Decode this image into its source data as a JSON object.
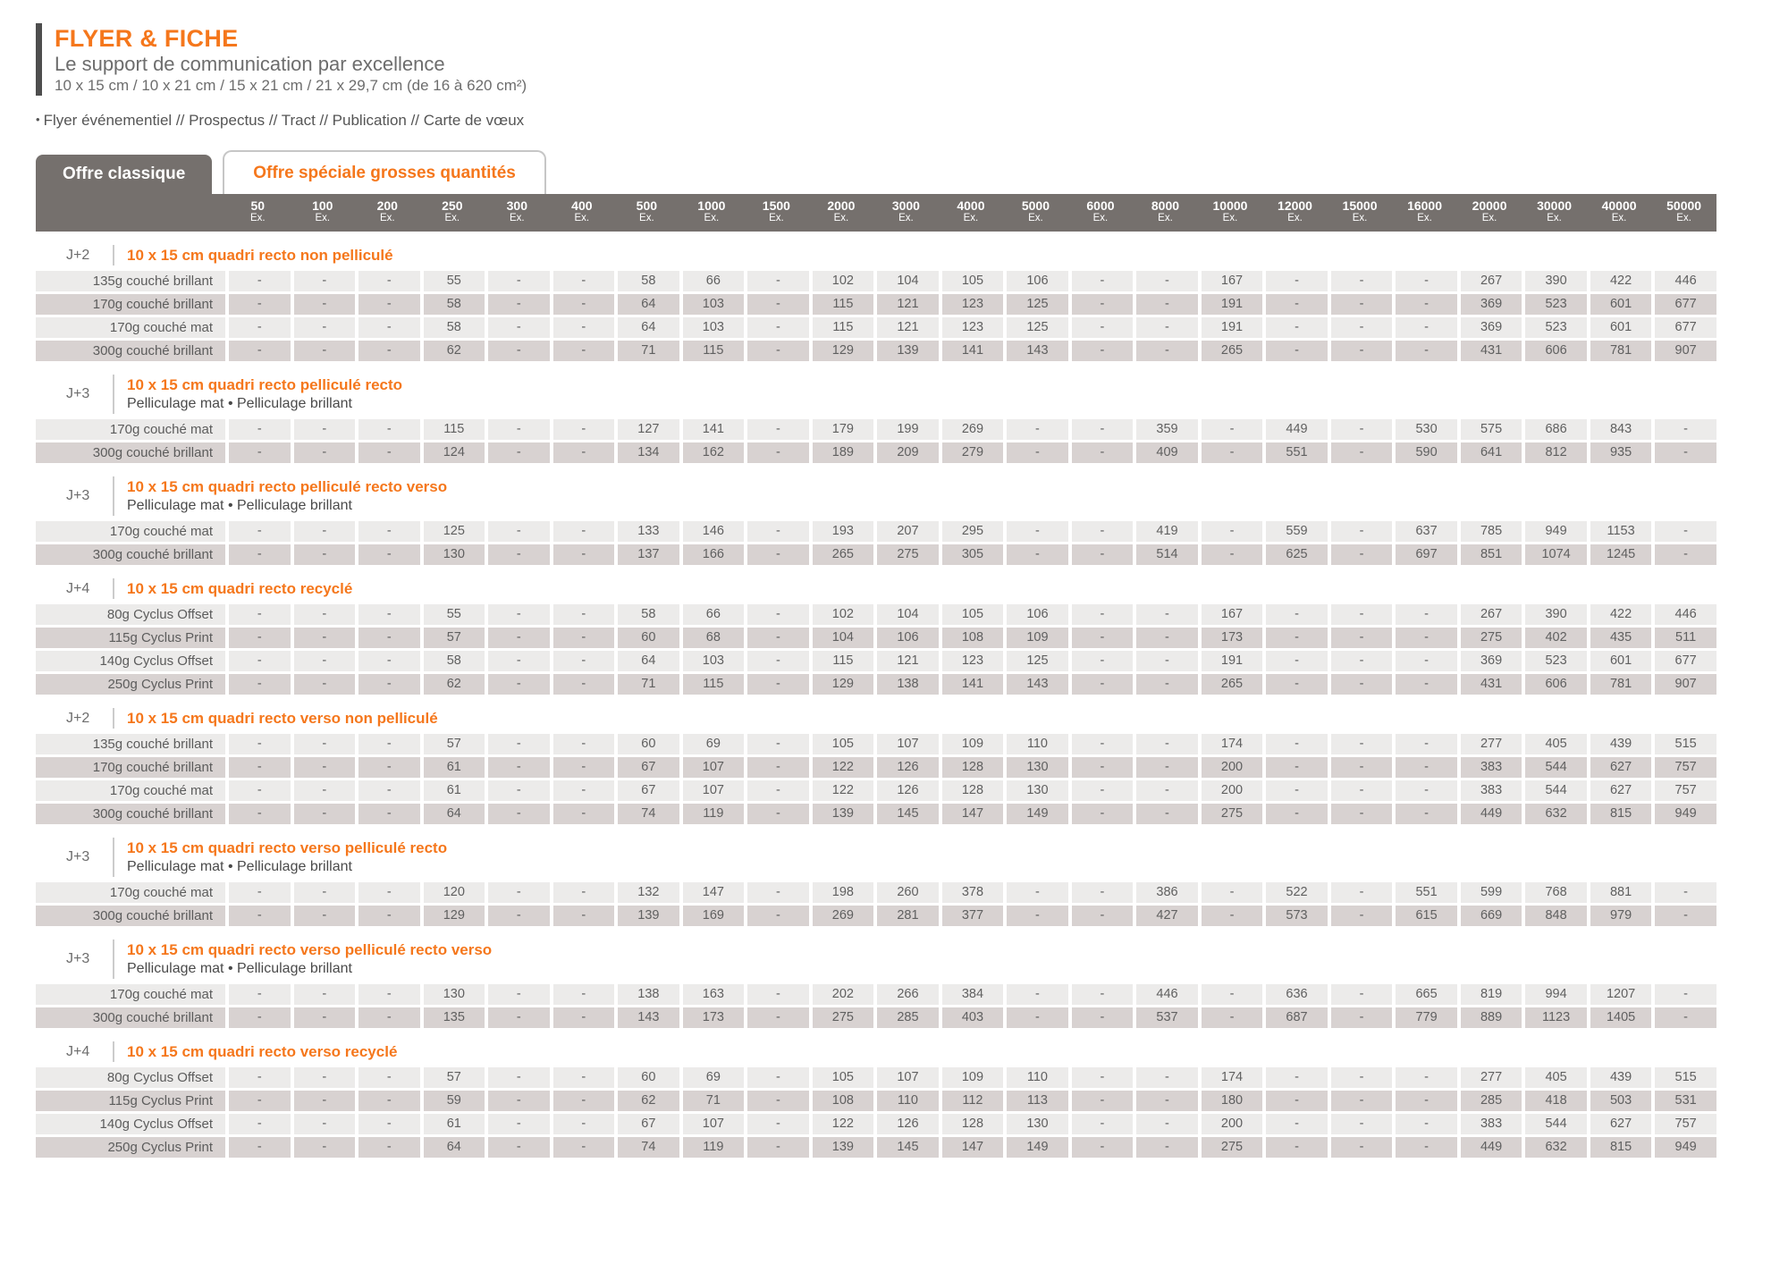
{
  "header": {
    "title": "FLYER & FICHE",
    "subtitle": "Le support de communication par excellence",
    "formats": "10 x 15 cm / 10 x 21 cm / 15 x 21 cm / 21 x 29,7 cm (de 16 à 620 cm²)",
    "bullet": "•",
    "uses": "Flyer événementiel // Prospectus // Tract // Publication // Carte de vœux"
  },
  "tabs": [
    {
      "label": "Offre classique",
      "active": true
    },
    {
      "label": "Offre spéciale grosses quantités",
      "active": false
    }
  ],
  "quantity_unit": "Ex.",
  "quantities": [
    "50",
    "100",
    "200",
    "250",
    "300",
    "400",
    "500",
    "1000",
    "1500",
    "2000",
    "3000",
    "4000",
    "5000",
    "6000",
    "8000",
    "10000",
    "12000",
    "15000",
    "16000",
    "20000",
    "30000",
    "40000",
    "50000"
  ],
  "colors": {
    "accent_orange": "#f5771c",
    "band_gray": "#75706d",
    "row_light": "#ecebea",
    "row_dark": "#d8d2d1",
    "title_bar": "#4e4e4e"
  },
  "sections": [
    {
      "delay": "J+2",
      "title": "10 x 15 cm quadri recto non pelliculé",
      "subtitle": null,
      "rows": [
        {
          "label": "135g couché brillant",
          "values": [
            "-",
            "-",
            "-",
            "55",
            "-",
            "-",
            "58",
            "66",
            "-",
            "102",
            "104",
            "105",
            "106",
            "-",
            "-",
            "167",
            "-",
            "-",
            "-",
            "267",
            "390",
            "422",
            "446"
          ]
        },
        {
          "label": "170g couché brillant",
          "values": [
            "-",
            "-",
            "-",
            "58",
            "-",
            "-",
            "64",
            "103",
            "-",
            "115",
            "121",
            "123",
            "125",
            "-",
            "-",
            "191",
            "-",
            "-",
            "-",
            "369",
            "523",
            "601",
            "677"
          ]
        },
        {
          "label": "170g couché mat",
          "values": [
            "-",
            "-",
            "-",
            "58",
            "-",
            "-",
            "64",
            "103",
            "-",
            "115",
            "121",
            "123",
            "125",
            "-",
            "-",
            "191",
            "-",
            "-",
            "-",
            "369",
            "523",
            "601",
            "677"
          ]
        },
        {
          "label": "300g couché brillant",
          "values": [
            "-",
            "-",
            "-",
            "62",
            "-",
            "-",
            "71",
            "115",
            "-",
            "129",
            "139",
            "141",
            "143",
            "-",
            "-",
            "265",
            "-",
            "-",
            "-",
            "431",
            "606",
            "781",
            "907"
          ]
        }
      ]
    },
    {
      "delay": "J+3",
      "title": "10 x 15 cm quadri recto pelliculé recto",
      "subtitle": "Pelliculage mat  •  Pelliculage brillant",
      "rows": [
        {
          "label": "170g couché mat",
          "values": [
            "-",
            "-",
            "-",
            "115",
            "-",
            "-",
            "127",
            "141",
            "-",
            "179",
            "199",
            "269",
            "-",
            "-",
            "359",
            "-",
            "449",
            "-",
            "530",
            "575",
            "686",
            "843",
            "-"
          ]
        },
        {
          "label": "300g couché brillant",
          "values": [
            "-",
            "-",
            "-",
            "124",
            "-",
            "-",
            "134",
            "162",
            "-",
            "189",
            "209",
            "279",
            "-",
            "-",
            "409",
            "-",
            "551",
            "-",
            "590",
            "641",
            "812",
            "935",
            "-"
          ]
        }
      ]
    },
    {
      "delay": "J+3",
      "title": "10 x 15 cm quadri recto pelliculé recto verso",
      "subtitle": "Pelliculage mat  •  Pelliculage brillant",
      "rows": [
        {
          "label": "170g couché mat",
          "values": [
            "-",
            "-",
            "-",
            "125",
            "-",
            "-",
            "133",
            "146",
            "-",
            "193",
            "207",
            "295",
            "-",
            "-",
            "419",
            "-",
            "559",
            "-",
            "637",
            "785",
            "949",
            "1153",
            "-"
          ]
        },
        {
          "label": "300g couché brillant",
          "values": [
            "-",
            "-",
            "-",
            "130",
            "-",
            "-",
            "137",
            "166",
            "-",
            "265",
            "275",
            "305",
            "-",
            "-",
            "514",
            "-",
            "625",
            "-",
            "697",
            "851",
            "1074",
            "1245",
            "-"
          ]
        }
      ]
    },
    {
      "delay": "J+4",
      "title": "10 x 15 cm quadri recto recyclé",
      "subtitle": null,
      "rows": [
        {
          "label": "80g Cyclus Offset",
          "values": [
            "-",
            "-",
            "-",
            "55",
            "-",
            "-",
            "58",
            "66",
            "-",
            "102",
            "104",
            "105",
            "106",
            "-",
            "-",
            "167",
            "-",
            "-",
            "-",
            "267",
            "390",
            "422",
            "446"
          ]
        },
        {
          "label": "115g Cyclus Print",
          "values": [
            "-",
            "-",
            "-",
            "57",
            "-",
            "-",
            "60",
            "68",
            "-",
            "104",
            "106",
            "108",
            "109",
            "-",
            "-",
            "173",
            "-",
            "-",
            "-",
            "275",
            "402",
            "435",
            "511"
          ]
        },
        {
          "label": "140g Cyclus Offset",
          "values": [
            "-",
            "-",
            "-",
            "58",
            "-",
            "-",
            "64",
            "103",
            "-",
            "115",
            "121",
            "123",
            "125",
            "-",
            "-",
            "191",
            "-",
            "-",
            "-",
            "369",
            "523",
            "601",
            "677"
          ]
        },
        {
          "label": "250g Cyclus Print",
          "values": [
            "-",
            "-",
            "-",
            "62",
            "-",
            "-",
            "71",
            "115",
            "-",
            "129",
            "138",
            "141",
            "143",
            "-",
            "-",
            "265",
            "-",
            "-",
            "-",
            "431",
            "606",
            "781",
            "907"
          ]
        }
      ]
    },
    {
      "delay": "J+2",
      "title": "10 x 15 cm quadri recto verso non pelliculé",
      "subtitle": null,
      "rows": [
        {
          "label": "135g couché brillant",
          "values": [
            "-",
            "-",
            "-",
            "57",
            "-",
            "-",
            "60",
            "69",
            "-",
            "105",
            "107",
            "109",
            "110",
            "-",
            "-",
            "174",
            "-",
            "-",
            "-",
            "277",
            "405",
            "439",
            "515"
          ]
        },
        {
          "label": "170g couché brillant",
          "values": [
            "-",
            "-",
            "-",
            "61",
            "-",
            "-",
            "67",
            "107",
            "-",
            "122",
            "126",
            "128",
            "130",
            "-",
            "-",
            "200",
            "-",
            "-",
            "-",
            "383",
            "544",
            "627",
            "757"
          ]
        },
        {
          "label": "170g couché mat",
          "values": [
            "-",
            "-",
            "-",
            "61",
            "-",
            "-",
            "67",
            "107",
            "-",
            "122",
            "126",
            "128",
            "130",
            "-",
            "-",
            "200",
            "-",
            "-",
            "-",
            "383",
            "544",
            "627",
            "757"
          ]
        },
        {
          "label": "300g couché brillant",
          "values": [
            "-",
            "-",
            "-",
            "64",
            "-",
            "-",
            "74",
            "119",
            "-",
            "139",
            "145",
            "147",
            "149",
            "-",
            "-",
            "275",
            "-",
            "-",
            "-",
            "449",
            "632",
            "815",
            "949"
          ]
        }
      ]
    },
    {
      "delay": "J+3",
      "title": "10 x 15 cm quadri recto verso pelliculé recto",
      "subtitle": "Pelliculage mat  •  Pelliculage brillant",
      "rows": [
        {
          "label": "170g couché mat",
          "values": [
            "-",
            "-",
            "-",
            "120",
            "-",
            "-",
            "132",
            "147",
            "-",
            "198",
            "260",
            "378",
            "-",
            "-",
            "386",
            "-",
            "522",
            "-",
            "551",
            "599",
            "768",
            "881",
            "-"
          ]
        },
        {
          "label": "300g couché brillant",
          "values": [
            "-",
            "-",
            "-",
            "129",
            "-",
            "-",
            "139",
            "169",
            "-",
            "269",
            "281",
            "377",
            "-",
            "-",
            "427",
            "-",
            "573",
            "-",
            "615",
            "669",
            "848",
            "979",
            "-"
          ]
        }
      ]
    },
    {
      "delay": "J+3",
      "title": "10 x 15 cm quadri recto verso pelliculé recto verso",
      "subtitle": "Pelliculage mat  •  Pelliculage brillant",
      "rows": [
        {
          "label": "170g couché mat",
          "values": [
            "-",
            "-",
            "-",
            "130",
            "-",
            "-",
            "138",
            "163",
            "-",
            "202",
            "266",
            "384",
            "-",
            "-",
            "446",
            "-",
            "636",
            "-",
            "665",
            "819",
            "994",
            "1207",
            "-"
          ]
        },
        {
          "label": "300g couché brillant",
          "values": [
            "-",
            "-",
            "-",
            "135",
            "-",
            "-",
            "143",
            "173",
            "-",
            "275",
            "285",
            "403",
            "-",
            "-",
            "537",
            "-",
            "687",
            "-",
            "779",
            "889",
            "1123",
            "1405",
            "-"
          ]
        }
      ]
    },
    {
      "delay": "J+4",
      "title": "10 x 15 cm quadri recto verso recyclé",
      "subtitle": null,
      "rows": [
        {
          "label": "80g Cyclus Offset",
          "values": [
            "-",
            "-",
            "-",
            "57",
            "-",
            "-",
            "60",
            "69",
            "-",
            "105",
            "107",
            "109",
            "110",
            "-",
            "-",
            "174",
            "-",
            "-",
            "-",
            "277",
            "405",
            "439",
            "515"
          ]
        },
        {
          "label": "115g Cyclus Print",
          "values": [
            "-",
            "-",
            "-",
            "59",
            "-",
            "-",
            "62",
            "71",
            "-",
            "108",
            "110",
            "112",
            "113",
            "-",
            "-",
            "180",
            "-",
            "-",
            "-",
            "285",
            "418",
            "503",
            "531"
          ]
        },
        {
          "label": "140g Cyclus Offset",
          "values": [
            "-",
            "-",
            "-",
            "61",
            "-",
            "-",
            "67",
            "107",
            "-",
            "122",
            "126",
            "128",
            "130",
            "-",
            "-",
            "200",
            "-",
            "-",
            "-",
            "383",
            "544",
            "627",
            "757"
          ]
        },
        {
          "label": "250g Cyclus Print",
          "values": [
            "-",
            "-",
            "-",
            "64",
            "-",
            "-",
            "74",
            "119",
            "-",
            "139",
            "145",
            "147",
            "149",
            "-",
            "-",
            "275",
            "-",
            "-",
            "-",
            "449",
            "632",
            "815",
            "949"
          ]
        }
      ]
    }
  ]
}
